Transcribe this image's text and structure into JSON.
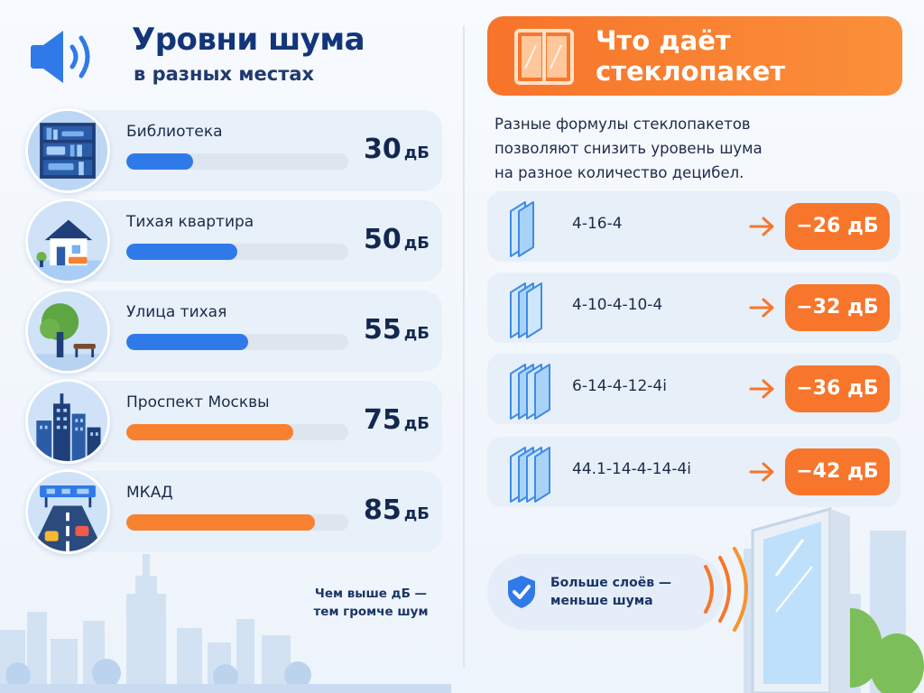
{
  "left": {
    "title": "Уровни шума",
    "subtitle": "в разных местах",
    "unit": "дБ",
    "places": [
      {
        "name": "Библиотека",
        "db": "30",
        "level": 30,
        "icon": "bookshelf-icon",
        "color": "#2f7ae8"
      },
      {
        "name": "Тихая квартира",
        "db": "50",
        "level": 50,
        "icon": "house-icon",
        "color": "#2f7ae8"
      },
      {
        "name": "Улица тихая",
        "db": "55",
        "level": 55,
        "icon": "tree-bench-icon",
        "color": "#2f7ae8"
      },
      {
        "name": "Проспект Москвы",
        "db": "75",
        "level": 75,
        "icon": "city-buildings-icon",
        "color": "#f7812e"
      },
      {
        "name": "МКАД",
        "db": "85",
        "level": 85,
        "icon": "highway-icon",
        "color": "#f7812e"
      }
    ],
    "note_line1": "Чем выше дБ —",
    "note_line2": "тем громче шум"
  },
  "right": {
    "title_line1": "Что даёт",
    "title_line2": "стеклопакет",
    "desc_line1": "Разные формулы стеклопакетов",
    "desc_line2": "позволяют снизить уровень шума",
    "desc_line3": "на разное количество децибел.",
    "formulas": [
      {
        "formula": "4-16-4",
        "reduction": "−26 дБ",
        "layers": 2
      },
      {
        "formula": "4-10-4-10-4",
        "reduction": "−32 дБ",
        "layers": 3
      },
      {
        "formula": "6-14-4-12-4i",
        "reduction": "−36 дБ",
        "layers": 4
      },
      {
        "formula": "44.1-14-4-14-4i",
        "reduction": "−42 дБ",
        "layers": 4
      }
    ],
    "bottom_line1": "Больше слоёв —",
    "bottom_line2": "меньше шума"
  },
  "colors": {
    "accent_orange": "#f7762b",
    "accent_blue": "#2f7ae8",
    "title_blue": "#13357a"
  }
}
